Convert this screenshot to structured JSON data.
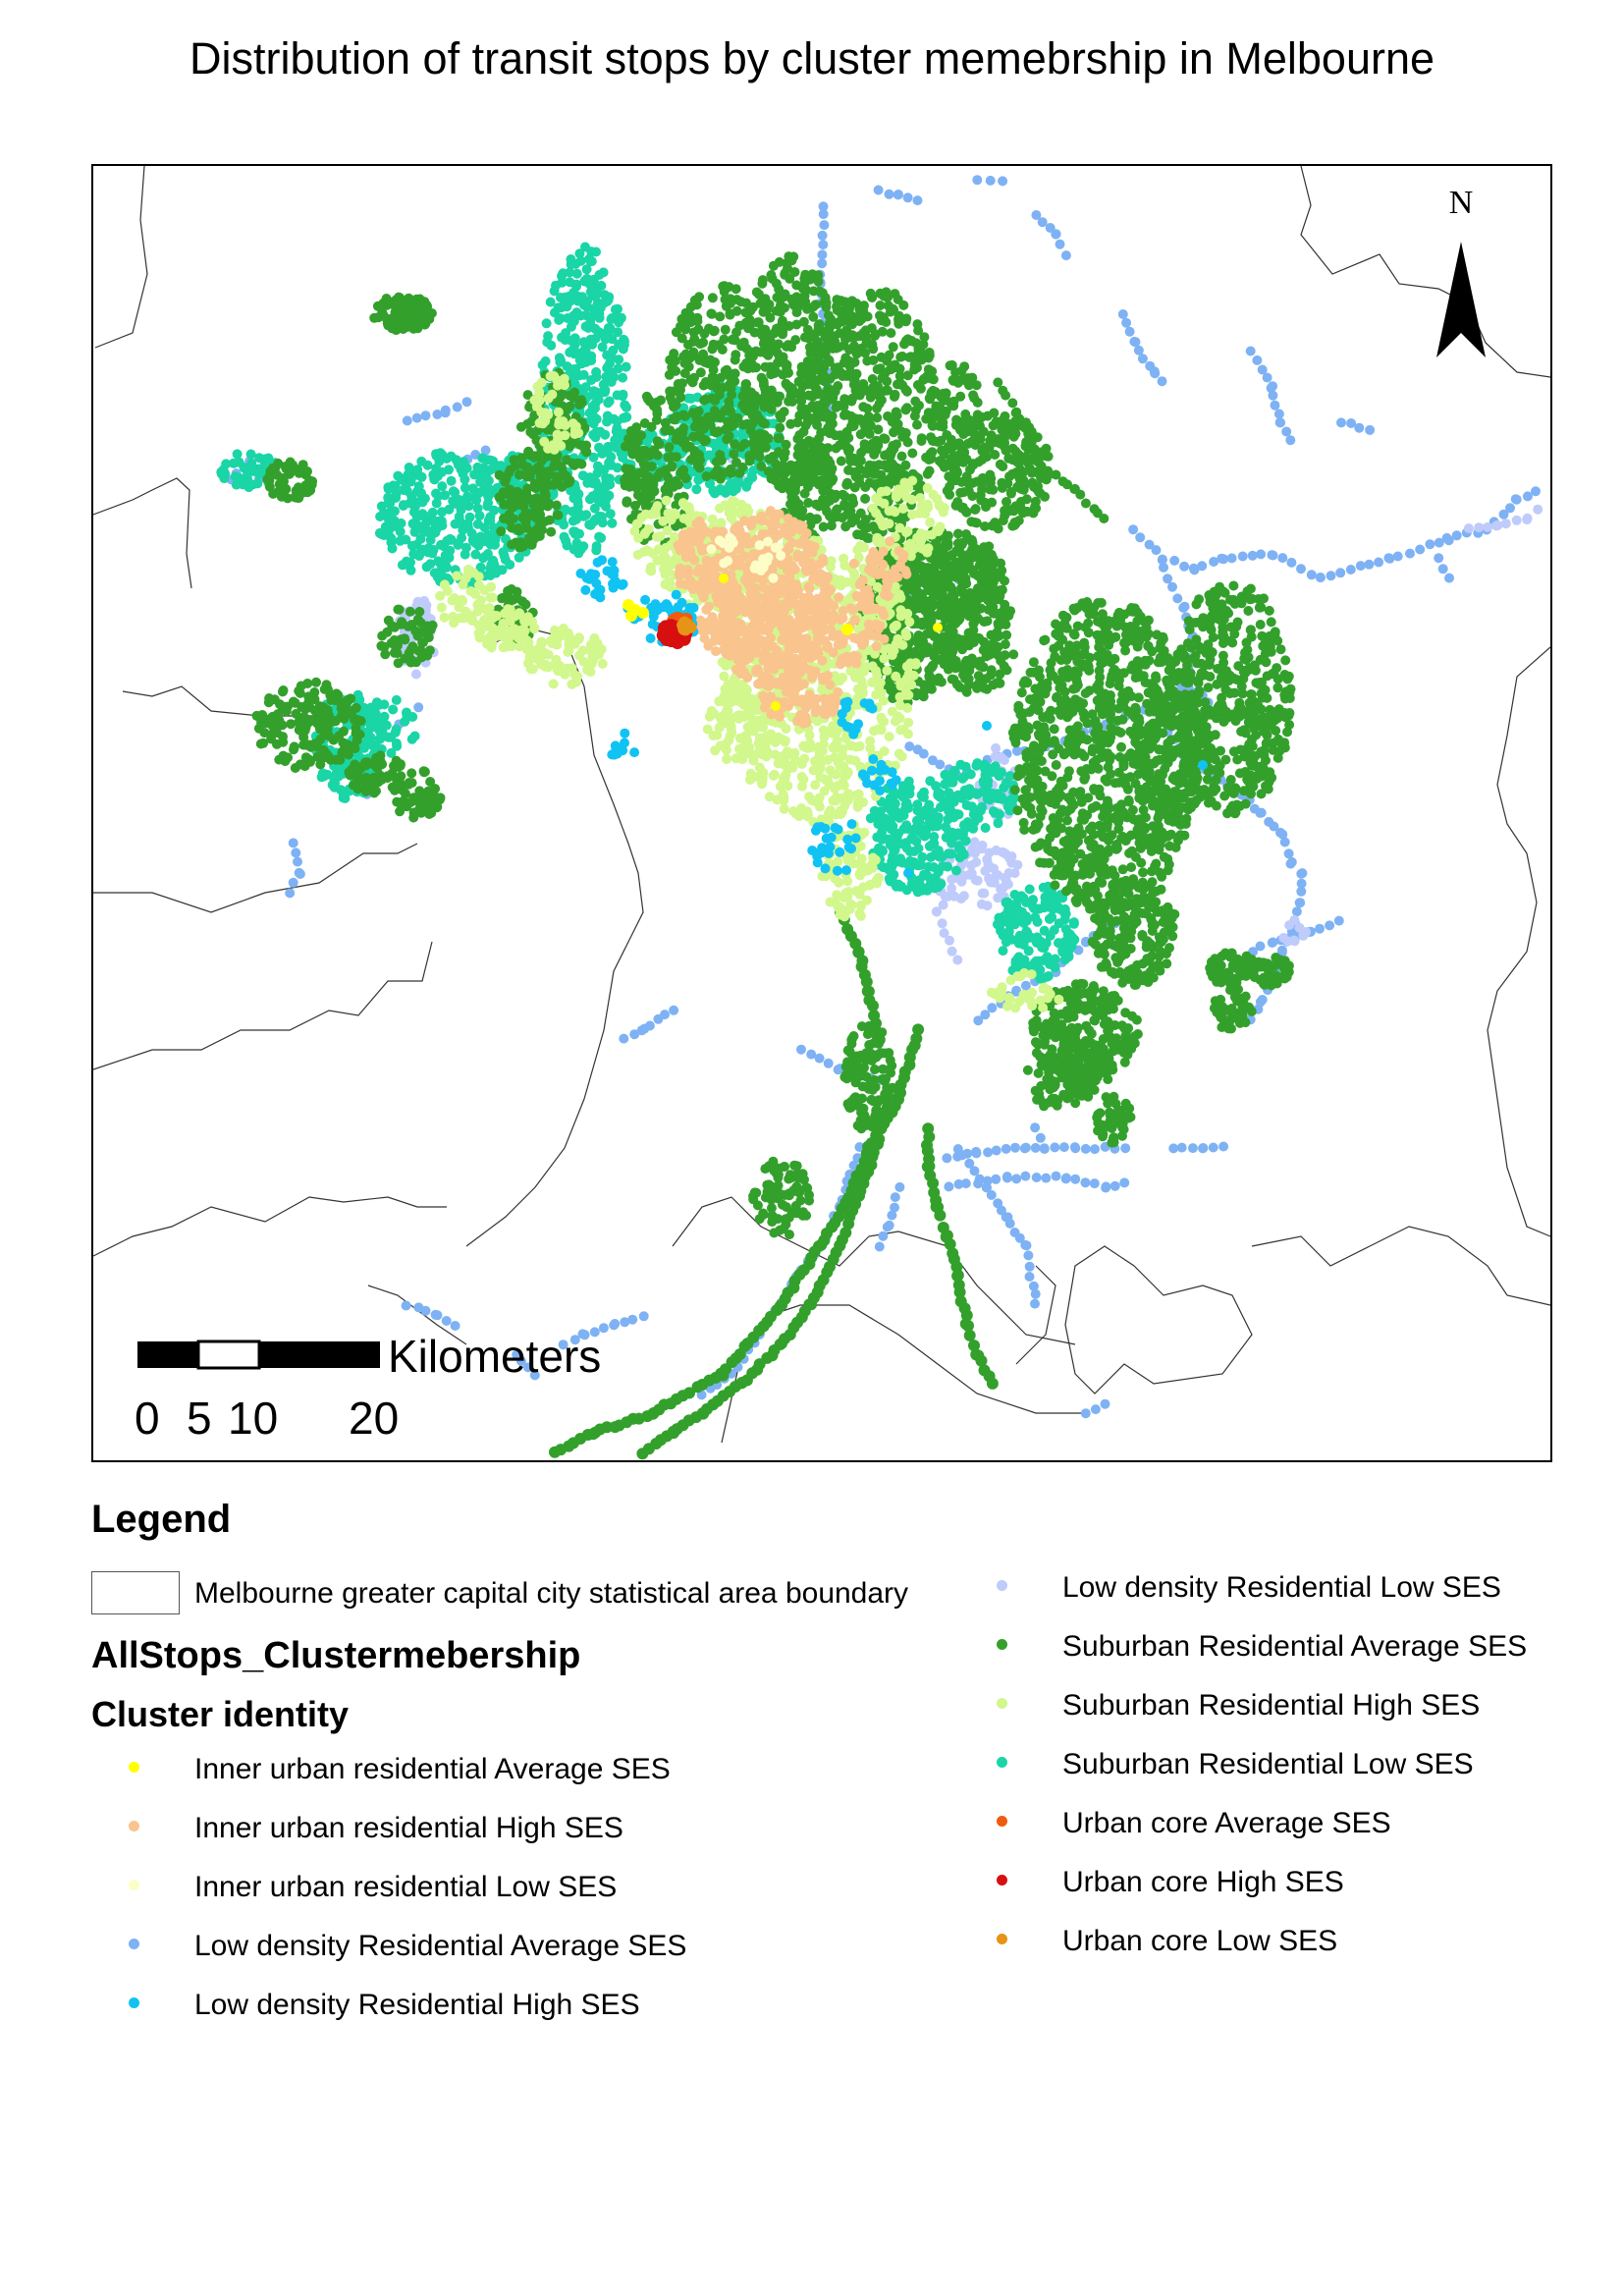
{
  "title": "Distribution of transit stops by cluster memebrship in Melbourne",
  "map": {
    "north_label": "N",
    "scale": {
      "unit_label": "Kilometers",
      "tick_labels": [
        "0",
        "5",
        "10",
        "20"
      ]
    }
  },
  "legend": {
    "title": "Legend",
    "boundary_label": "Melbourne greater capital city statistical area boundary",
    "layer_name": "AllStops_Clustermebership",
    "field_name": "Cluster identity",
    "categories": [
      {
        "label": "Inner urban residential Average SES",
        "color": "#ffff00"
      },
      {
        "label": "Inner urban residential High SES",
        "color": "#f9c48e"
      },
      {
        "label": "Inner urban residential Low SES",
        "color": "#fdfdc7"
      },
      {
        "label": "Low density Residential Average SES",
        "color": "#7eb2f4"
      },
      {
        "label": "Low density Residential High SES",
        "color": "#10c3f2"
      },
      {
        "label": "Low density Residential Low SES",
        "color": "#bfcbfb"
      },
      {
        "label": "Suburban Residential Average SES",
        "color": "#33a02c"
      },
      {
        "label": "Suburban Residential High SES",
        "color": "#d2f78c"
      },
      {
        "label": "Suburban Residential Low SES",
        "color": "#1ad5a6"
      },
      {
        "label": "Urban core Average SES",
        "color": "#f15a0f"
      },
      {
        "label": "Urban core High SES",
        "color": "#d80f0f"
      },
      {
        "label": "Urban core Low SES",
        "color": "#e69316"
      }
    ]
  }
}
